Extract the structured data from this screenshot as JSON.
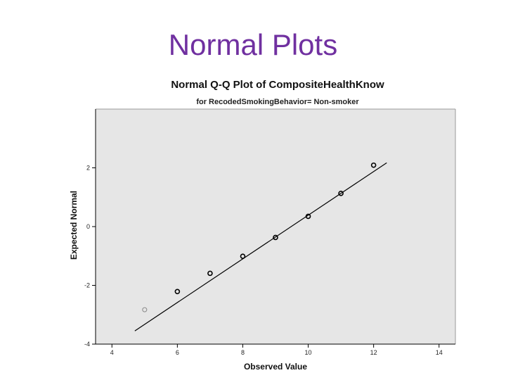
{
  "slide": {
    "title": "Normal Plots"
  },
  "chart_data": {
    "type": "scatter",
    "title": "Normal Q-Q Plot of CompositeHealthKnow",
    "subtitle": "for RecodedSmokingBehavior= Non-smoker",
    "xlabel": "Observed Value",
    "ylabel": "Expected Normal",
    "xlim": [
      3.5,
      14.5
    ],
    "ylim": [
      -4,
      4
    ],
    "x_ticks": [
      4,
      6,
      8,
      10,
      12,
      14
    ],
    "x_tick_labels": [
      "4",
      "6",
      "8",
      "10",
      "12",
      "14"
    ],
    "y_ticks": [
      2,
      0,
      -2,
      -4
    ],
    "y_tick_labels": [
      "2",
      "0",
      "-2",
      "-4"
    ],
    "grid": false,
    "background_color": "#e6e6e6",
    "series": [
      {
        "points": [
          {
            "x": 5,
            "y": -2.83
          },
          {
            "x": 6,
            "y": -2.21
          },
          {
            "x": 7,
            "y": -1.59
          },
          {
            "x": 8,
            "y": -1.01
          },
          {
            "x": 9,
            "y": -0.37
          },
          {
            "x": 10,
            "y": 0.35
          },
          {
            "x": 11,
            "y": 1.13
          },
          {
            "x": 12,
            "y": 2.09
          }
        ]
      }
    ],
    "reference_line": {
      "x": [
        4.7,
        12.4
      ],
      "y": [
        -3.55,
        2.17
      ]
    }
  }
}
